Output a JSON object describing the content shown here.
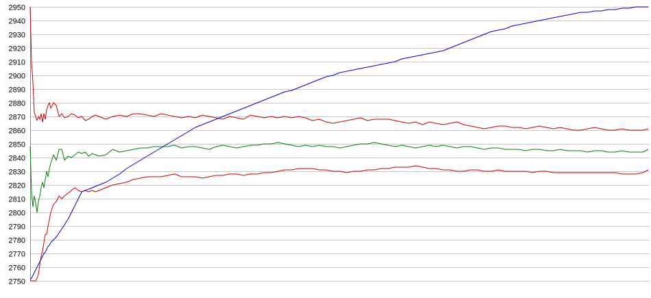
{
  "chart_data": {
    "type": "line",
    "title": "",
    "xlabel": "",
    "ylabel": "",
    "grid": true,
    "ylim": [
      2750,
      2950
    ],
    "yticks": [
      2750,
      2760,
      2770,
      2780,
      2790,
      2800,
      2810,
      2820,
      2830,
      2840,
      2850,
      2860,
      2870,
      2880,
      2890,
      2900,
      2910,
      2920,
      2930,
      2940,
      2950
    ],
    "x": [
      0,
      2,
      4,
      6,
      8,
      10,
      12,
      14,
      16,
      18,
      20,
      22,
      24,
      26,
      28,
      30,
      34,
      38,
      42,
      46,
      50,
      55,
      60,
      65,
      70,
      75,
      80,
      85,
      90,
      95,
      100,
      110,
      120,
      130,
      140,
      150,
      160,
      170,
      180,
      190,
      200,
      210,
      220,
      230,
      240,
      250,
      260,
      270,
      280,
      290,
      300,
      310,
      320,
      330,
      340,
      350,
      360,
      370,
      380,
      390,
      400,
      410,
      420,
      430,
      440,
      450,
      460,
      470,
      480,
      490,
      500,
      510,
      520,
      530,
      540,
      550,
      560,
      570,
      580,
      590,
      600,
      610,
      620,
      630,
      640,
      650,
      660,
      670,
      680,
      690,
      700,
      710,
      720,
      730,
      740,
      750,
      760,
      770,
      780,
      790,
      800,
      810,
      820,
      830,
      840,
      850,
      860,
      870,
      880,
      890,
      898
    ],
    "xlim": [
      0,
      900
    ],
    "series": [
      {
        "color": "#cc0000",
        "values": [
          2950,
          2910,
          2895,
          2873,
          2870,
          2867,
          2870,
          2868,
          2872,
          2866,
          2872,
          2868,
          2875,
          2878,
          2880,
          2876,
          2880,
          2878,
          2870,
          2872,
          2869,
          2870,
          2872,
          2871,
          2869,
          2870,
          2867,
          2868,
          2870,
          2871,
          2870,
          2868,
          2870,
          2871,
          2870,
          2872,
          2872,
          2871,
          2870,
          2872,
          2871,
          2870,
          2869,
          2870,
          2869,
          2871,
          2870,
          2869,
          2868,
          2870,
          2869,
          2868,
          2871,
          2870,
          2869,
          2870,
          2869,
          2870,
          2869,
          2870,
          2869,
          2867,
          2868,
          2866,
          2865,
          2866,
          2867,
          2868,
          2869,
          2867,
          2868,
          2868,
          2868,
          2867,
          2866,
          2865,
          2866,
          2864,
          2866,
          2865,
          2864,
          2865,
          2866,
          2864,
          2863,
          2862,
          2861,
          2862,
          2863,
          2863,
          2862,
          2862,
          2861,
          2862,
          2863,
          2862,
          2861,
          2862,
          2861,
          2860,
          2860,
          2861,
          2862,
          2861,
          2860,
          2860,
          2861,
          2860,
          2860,
          2860,
          2861
        ]
      },
      {
        "color": "#008000",
        "values": [
          2848,
          2815,
          2804,
          2812,
          2807,
          2800,
          2808,
          2812,
          2818,
          2822,
          2818,
          2824,
          2830,
          2826,
          2832,
          2836,
          2842,
          2838,
          2846,
          2846,
          2838,
          2841,
          2840,
          2842,
          2844,
          2843,
          2844,
          2841,
          2843,
          2842,
          2841,
          2842,
          2846,
          2844,
          2845,
          2846,
          2847,
          2847,
          2848,
          2848,
          2848,
          2849,
          2847,
          2848,
          2848,
          2847,
          2846,
          2848,
          2849,
          2848,
          2847,
          2848,
          2849,
          2849,
          2850,
          2850,
          2851,
          2850,
          2849,
          2848,
          2849,
          2848,
          2849,
          2848,
          2848,
          2847,
          2848,
          2849,
          2850,
          2850,
          2851,
          2850,
          2849,
          2848,
          2849,
          2848,
          2847,
          2848,
          2849,
          2848,
          2849,
          2848,
          2847,
          2848,
          2848,
          2847,
          2846,
          2847,
          2847,
          2846,
          2846,
          2846,
          2845,
          2846,
          2846,
          2845,
          2845,
          2846,
          2845,
          2845,
          2845,
          2844,
          2845,
          2845,
          2844,
          2844,
          2845,
          2844,
          2844,
          2844,
          2846
        ]
      },
      {
        "color": "#cc0000",
        "values": [
          2750,
          2750,
          2750,
          2750,
          2750,
          2752,
          2755,
          2762,
          2768,
          2772,
          2778,
          2784,
          2784,
          2790,
          2795,
          2800,
          2806,
          2808,
          2812,
          2810,
          2812,
          2814,
          2816,
          2818,
          2816,
          2815,
          2816,
          2815,
          2816,
          2815,
          2816,
          2818,
          2820,
          2821,
          2822,
          2824,
          2825,
          2826,
          2826,
          2826,
          2827,
          2828,
          2826,
          2826,
          2826,
          2825,
          2826,
          2827,
          2827,
          2828,
          2828,
          2827,
          2828,
          2828,
          2829,
          2829,
          2830,
          2831,
          2831,
          2832,
          2832,
          2832,
          2831,
          2831,
          2830,
          2830,
          2829,
          2830,
          2830,
          2831,
          2831,
          2832,
          2832,
          2833,
          2833,
          2833,
          2834,
          2833,
          2832,
          2832,
          2831,
          2831,
          2830,
          2830,
          2831,
          2831,
          2830,
          2830,
          2831,
          2830,
          2830,
          2830,
          2830,
          2829,
          2830,
          2830,
          2829,
          2829,
          2829,
          2829,
          2829,
          2829,
          2829,
          2829,
          2829,
          2829,
          2828,
          2828,
          2828,
          2829,
          2831
        ]
      },
      {
        "color": "#0000cc",
        "values": [
          2751,
          2752,
          2754,
          2756,
          2758,
          2760,
          2762,
          2764,
          2766,
          2768,
          2770,
          2771,
          2773,
          2775,
          2776,
          2778,
          2780,
          2782,
          2785,
          2788,
          2791,
          2795,
          2800,
          2805,
          2810,
          2815,
          2816,
          2817,
          2818,
          2819,
          2820,
          2822,
          2825,
          2828,
          2832,
          2835,
          2838,
          2841,
          2844,
          2847,
          2850,
          2853,
          2856,
          2859,
          2862,
          2864,
          2866,
          2868,
          2870,
          2872,
          2874,
          2876,
          2878,
          2880,
          2882,
          2884,
          2886,
          2888,
          2889,
          2891,
          2893,
          2895,
          2897,
          2899,
          2900,
          2902,
          2903,
          2904,
          2905,
          2906,
          2907,
          2908,
          2909,
          2910,
          2912,
          2913,
          2914,
          2915,
          2916,
          2917,
          2918,
          2920,
          2922,
          2924,
          2926,
          2928,
          2930,
          2932,
          2933,
          2934,
          2936,
          2937,
          2938,
          2939,
          2940,
          2941,
          2942,
          2943,
          2944,
          2945,
          2946,
          2946,
          2947,
          2947,
          2948,
          2948,
          2949,
          2949,
          2950,
          2950,
          2950
        ]
      }
    ]
  }
}
